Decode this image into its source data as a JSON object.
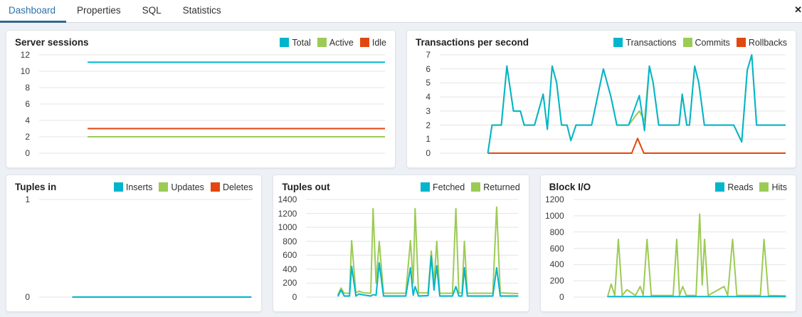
{
  "tabs": [
    {
      "label": "Dashboard",
      "active": true
    },
    {
      "label": "Properties",
      "active": false
    },
    {
      "label": "SQL",
      "active": false
    },
    {
      "label": "Statistics",
      "active": false
    }
  ],
  "close_icon_glyph": "✕",
  "colors": {
    "cyan": "#00b5cc",
    "green": "#9ccb55",
    "red": "#e2470f",
    "grid": "#e4e4e4",
    "tab_active": "#2e72a8",
    "tab_underline": "#34678f"
  },
  "chart_data": [
    {
      "type": "line",
      "title": "Server sessions",
      "ymax": 12,
      "yticks": [
        12,
        10,
        8,
        6,
        4,
        2,
        0
      ],
      "grid": true,
      "legend_position": "top-right",
      "series": [
        {
          "name": "Total",
          "color": "cyan",
          "points": [
            [
              14,
              11.1
            ],
            [
              100,
              11.1
            ]
          ]
        },
        {
          "name": "Active",
          "color": "green",
          "points": [
            [
              14,
              2
            ],
            [
              100,
              2
            ]
          ]
        },
        {
          "name": "Idle",
          "color": "red",
          "points": [
            [
              14,
              3
            ],
            [
              100,
              3
            ]
          ]
        }
      ]
    },
    {
      "type": "line",
      "title": "Transactions per second",
      "ymax": 7,
      "yticks": [
        7,
        6,
        5,
        4,
        3,
        2,
        1,
        0
      ],
      "grid": true,
      "legend_position": "top-right",
      "series": [
        {
          "name": "Transactions",
          "color": "cyan",
          "points": [
            [
              13.9,
              0
            ],
            [
              15.1,
              2
            ],
            [
              17.8,
              2
            ],
            [
              19.4,
              6.2
            ],
            [
              21.3,
              3
            ],
            [
              23.3,
              3
            ],
            [
              24.4,
              2
            ],
            [
              27.4,
              2
            ],
            [
              29.9,
              4.2
            ],
            [
              31.1,
              1.7
            ],
            [
              32.5,
              6.2
            ],
            [
              33.8,
              5
            ],
            [
              35.2,
              2
            ],
            [
              36.8,
              2
            ],
            [
              37.9,
              0.9
            ],
            [
              39.4,
              2
            ],
            [
              43.9,
              2
            ],
            [
              47.3,
              6
            ],
            [
              49.5,
              4
            ],
            [
              51.2,
              2
            ],
            [
              54.6,
              2
            ],
            [
              57.7,
              4.1
            ],
            [
              59.2,
              1.6
            ],
            [
              60.6,
              6.2
            ],
            [
              61.7,
              5
            ],
            [
              63.3,
              2
            ],
            [
              69.2,
              2
            ],
            [
              70.1,
              4.2
            ],
            [
              71.4,
              2
            ],
            [
              72.2,
              2
            ],
            [
              73.7,
              6.2
            ],
            [
              74.9,
              5
            ],
            [
              76.5,
              2
            ],
            [
              85,
              2
            ],
            [
              87.3,
              0.8
            ],
            [
              88.9,
              5.9
            ],
            [
              90.2,
              7
            ],
            [
              91.6,
              2
            ],
            [
              100,
              2
            ]
          ]
        },
        {
          "name": "Commits",
          "color": "green",
          "points": [
            [
              13.9,
              0
            ],
            [
              15.1,
              2
            ],
            [
              17.8,
              2
            ],
            [
              19.4,
              6.2
            ],
            [
              21.3,
              3
            ],
            [
              23.3,
              3
            ],
            [
              24.4,
              2
            ],
            [
              27.4,
              2
            ],
            [
              29.9,
              4.2
            ],
            [
              31.1,
              1.7
            ],
            [
              32.5,
              6.2
            ],
            [
              33.8,
              5
            ],
            [
              35.2,
              2
            ],
            [
              36.8,
              2
            ],
            [
              37.9,
              0.9
            ],
            [
              39.4,
              2
            ],
            [
              43.9,
              2
            ],
            [
              47.3,
              6
            ],
            [
              49.5,
              4
            ],
            [
              51.2,
              2
            ],
            [
              54.6,
              2
            ],
            [
              57.7,
              3
            ],
            [
              59.2,
              2.3
            ],
            [
              60.6,
              6.2
            ],
            [
              61.7,
              5
            ],
            [
              63.3,
              2
            ],
            [
              69.2,
              2
            ],
            [
              70.1,
              4.2
            ],
            [
              71.4,
              2
            ],
            [
              72.2,
              2
            ],
            [
              73.7,
              6.2
            ],
            [
              74.9,
              5
            ],
            [
              76.5,
              2
            ],
            [
              85,
              2
            ],
            [
              87.3,
              0.8
            ],
            [
              88.9,
              5.9
            ],
            [
              90.2,
              7
            ],
            [
              91.6,
              2
            ],
            [
              100,
              2
            ]
          ]
        },
        {
          "name": "Rollbacks",
          "color": "red",
          "points": [
            [
              13.9,
              0
            ],
            [
              55.5,
              0
            ],
            [
              57.2,
              1.05
            ],
            [
              59,
              0
            ],
            [
              100,
              0
            ]
          ]
        }
      ]
    },
    {
      "type": "line",
      "title": "Tuples in",
      "ymax": 1,
      "yticks": [
        1,
        0
      ],
      "grid": true,
      "legend_position": "top-right",
      "series": [
        {
          "name": "Inserts",
          "color": "cyan",
          "points": [
            [
              15.6,
              0
            ],
            [
              100,
              0
            ]
          ]
        },
        {
          "name": "Updates",
          "color": "green",
          "points": [
            [
              15.6,
              0
            ],
            [
              100,
              0
            ]
          ]
        },
        {
          "name": "Deletes",
          "color": "red",
          "points": [
            [
              15.6,
              0
            ],
            [
              100,
              0
            ]
          ]
        }
      ]
    },
    {
      "type": "line",
      "title": "Tuples out",
      "ymax": 1400,
      "yticks": [
        1400,
        1200,
        1000,
        800,
        600,
        400,
        200,
        0
      ],
      "grid": true,
      "legend_position": "top-right",
      "series": [
        {
          "name": "Fetched",
          "color": "cyan",
          "points": [
            [
              15,
              10
            ],
            [
              16.5,
              100
            ],
            [
              18,
              15
            ],
            [
              20.5,
              15
            ],
            [
              21.5,
              440
            ],
            [
              23.5,
              15
            ],
            [
              25,
              45
            ],
            [
              27,
              30
            ],
            [
              30.5,
              15
            ],
            [
              31.6,
              35
            ],
            [
              33,
              25
            ],
            [
              34.5,
              490
            ],
            [
              36.5,
              15
            ],
            [
              47,
              15
            ],
            [
              49.2,
              420
            ],
            [
              50.5,
              25
            ],
            [
              51.4,
              150
            ],
            [
              53,
              15
            ],
            [
              57.5,
              20
            ],
            [
              59,
              590
            ],
            [
              60.3,
              100
            ],
            [
              61.6,
              450
            ],
            [
              63,
              15
            ],
            [
              69,
              15
            ],
            [
              70.6,
              150
            ],
            [
              72,
              15
            ],
            [
              73.5,
              15
            ],
            [
              74.6,
              420
            ],
            [
              76,
              15
            ],
            [
              88,
              15
            ],
            [
              89.8,
              420
            ],
            [
              91.5,
              15
            ],
            [
              100,
              15
            ]
          ]
        },
        {
          "name": "Returned",
          "color": "green",
          "points": [
            [
              15,
              30
            ],
            [
              16.5,
              130
            ],
            [
              18,
              55
            ],
            [
              20.5,
              55
            ],
            [
              21.5,
              810
            ],
            [
              23.5,
              60
            ],
            [
              25,
              85
            ],
            [
              27,
              60
            ],
            [
              30.5,
              55
            ],
            [
              31.6,
              1270
            ],
            [
              33,
              200
            ],
            [
              34.5,
              800
            ],
            [
              36.5,
              55
            ],
            [
              47,
              55
            ],
            [
              49.2,
              810
            ],
            [
              50.5,
              200
            ],
            [
              51.4,
              1270
            ],
            [
              53,
              60
            ],
            [
              57.5,
              60
            ],
            [
              59,
              660
            ],
            [
              60.3,
              200
            ],
            [
              61.6,
              800
            ],
            [
              63,
              55
            ],
            [
              69,
              55
            ],
            [
              70.6,
              1270
            ],
            [
              72,
              60
            ],
            [
              73.5,
              60
            ],
            [
              74.6,
              800
            ],
            [
              76,
              55
            ],
            [
              88,
              55
            ],
            [
              89.8,
              1290
            ],
            [
              91.5,
              60
            ],
            [
              100,
              50
            ]
          ]
        }
      ]
    },
    {
      "type": "line",
      "title": "Block I/O",
      "ymax": 1200,
      "yticks": [
        1200,
        1000,
        800,
        600,
        400,
        200,
        0
      ],
      "grid": true,
      "legend_position": "top-right",
      "series": [
        {
          "name": "Reads",
          "color": "cyan",
          "points": [
            [
              16,
              5
            ],
            [
              100,
              5
            ]
          ]
        },
        {
          "name": "Hits",
          "color": "green",
          "points": [
            [
              16,
              0
            ],
            [
              17.7,
              160
            ],
            [
              19.4,
              20
            ],
            [
              21.1,
              710
            ],
            [
              22.9,
              20
            ],
            [
              25.1,
              90
            ],
            [
              26.9,
              60
            ],
            [
              29.1,
              20
            ],
            [
              31.4,
              130
            ],
            [
              32.8,
              20
            ],
            [
              34.6,
              710
            ],
            [
              36.6,
              20
            ],
            [
              46.9,
              20
            ],
            [
              48.6,
              710
            ],
            [
              49.9,
              20
            ],
            [
              51.4,
              130
            ],
            [
              53.1,
              20
            ],
            [
              57.7,
              20
            ],
            [
              59.4,
              1020
            ],
            [
              60.6,
              150
            ],
            [
              61.7,
              710
            ],
            [
              63.4,
              20
            ],
            [
              70.9,
              130
            ],
            [
              72.6,
              20
            ],
            [
              74.9,
              710
            ],
            [
              76.9,
              20
            ],
            [
              88,
              20
            ],
            [
              89.7,
              710
            ],
            [
              91.8,
              20
            ],
            [
              100,
              15
            ]
          ]
        }
      ]
    }
  ]
}
